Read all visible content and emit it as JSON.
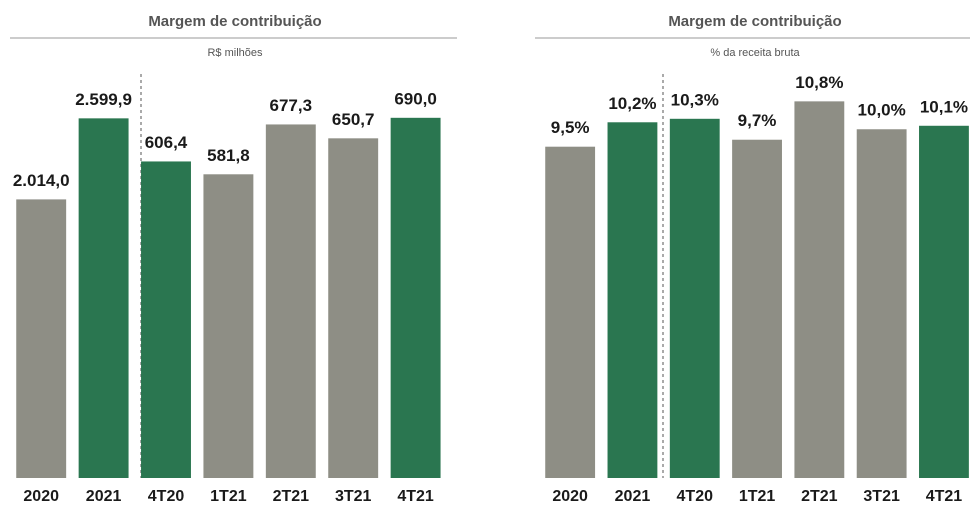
{
  "chart_data": [
    {
      "type": "bar",
      "title": "Margem de contribuição",
      "subtitle": "R$ milhões",
      "categories": [
        "2020",
        "2021",
        "4T20",
        "1T21",
        "2T21",
        "3T21",
        "4T21"
      ],
      "colors": [
        "#8e8e85",
        "#2a7650",
        "#2a7650",
        "#8e8e85",
        "#8e8e85",
        "#8e8e85",
        "#2a7650"
      ],
      "series": [
        {
          "values": [
            2014.0,
            2599.9,
            null,
            null,
            null,
            null,
            null
          ],
          "value_labels": [
            "2.014,0",
            "2.599,9",
            null,
            null,
            null,
            null,
            null
          ]
        },
        {
          "axis": "y2",
          "values": [
            null,
            null,
            606.4,
            581.8,
            677.3,
            650.7,
            690.0
          ],
          "value_labels": [
            null,
            null,
            "606,4",
            "581,8",
            "677,3",
            "650,7",
            "690,0"
          ]
        }
      ],
      "ylim": [
        0,
        3000
      ],
      "y2lim": [
        0,
        795
      ]
    },
    {
      "type": "bar",
      "title": "Margem de contribuição",
      "subtitle": "% da receita bruta",
      "categories": [
        "2020",
        "2021",
        "4T20",
        "1T21",
        "2T21",
        "3T21",
        "4T21"
      ],
      "colors": [
        "#8e8e85",
        "#2a7650",
        "#2a7650",
        "#8e8e85",
        "#8e8e85",
        "#8e8e85",
        "#2a7650"
      ],
      "series": [
        {
          "values": [
            9.5,
            10.2,
            10.3,
            9.7,
            10.8,
            10.0,
            10.1
          ],
          "value_labels": [
            "9,5%",
            "10,2%",
            "10,3%",
            "9,7%",
            "10,8%",
            "10,0%",
            "10,1%"
          ]
        }
      ],
      "ylim": [
        0,
        11.9
      ]
    }
  ]
}
